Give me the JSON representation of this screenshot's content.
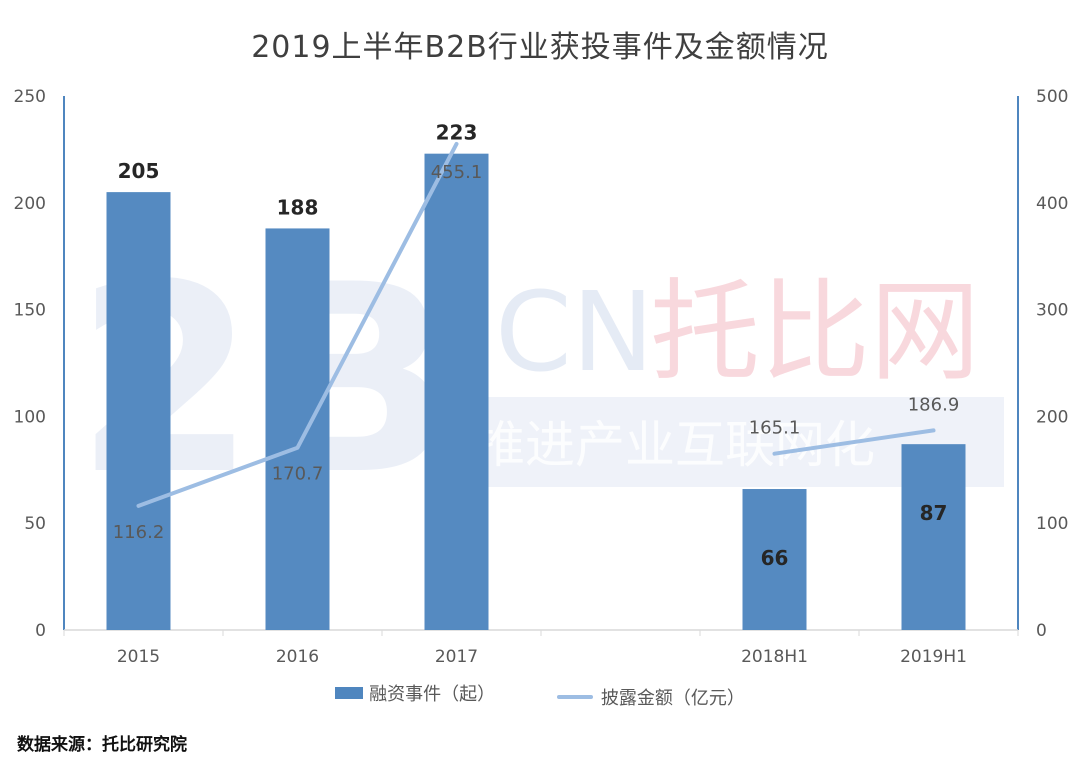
{
  "title": "2019上半年B2B行业获投事件及金额情况",
  "source": "数据来源：托比研究院",
  "watermark": {
    "big": "2B",
    "cn": "CN",
    "brand": "托比网",
    "slogan": "推进产业互联网化"
  },
  "colors": {
    "bar": "#4f86bf",
    "line": "#9dbde3",
    "axis": "#4f86bf",
    "grid": "#d9d9d9",
    "watermark_blue": "#dbe3f1",
    "watermark_pink": "#f6c8cf"
  },
  "chart_data": {
    "type": "bar",
    "title": "2019上半年B2B行业获投事件及金额情况",
    "categories": [
      "2015",
      "2016",
      "2017",
      "",
      "2018H1",
      "2019H1"
    ],
    "series": [
      {
        "name": "融资事件（起）",
        "type": "bar",
        "axis": "left",
        "values": [
          205,
          188,
          223,
          null,
          66,
          87
        ],
        "labels": [
          "205",
          "188",
          "223",
          "",
          "66",
          "87"
        ]
      },
      {
        "name": "披露金额（亿元）",
        "type": "line",
        "axis": "right",
        "segments": [
          {
            "indices": [
              0,
              1,
              2
            ],
            "values": [
              116.2,
              170.7,
              455.1
            ]
          },
          {
            "indices": [
              4,
              5
            ],
            "values": [
              165.1,
              186.9
            ]
          }
        ],
        "labels": [
          "116.2",
          "170.7",
          "455.1",
          "165.1",
          "186.9"
        ]
      }
    ],
    "y_left": {
      "min": 0,
      "max": 250,
      "ticks": [
        "0",
        "50",
        "100",
        "150",
        "200",
        "250"
      ]
    },
    "y_right": {
      "min": 0,
      "max": 500,
      "ticks": [
        "0",
        "100",
        "200",
        "300",
        "400",
        "500"
      ]
    },
    "grid": false,
    "legend_position": "bottom"
  }
}
